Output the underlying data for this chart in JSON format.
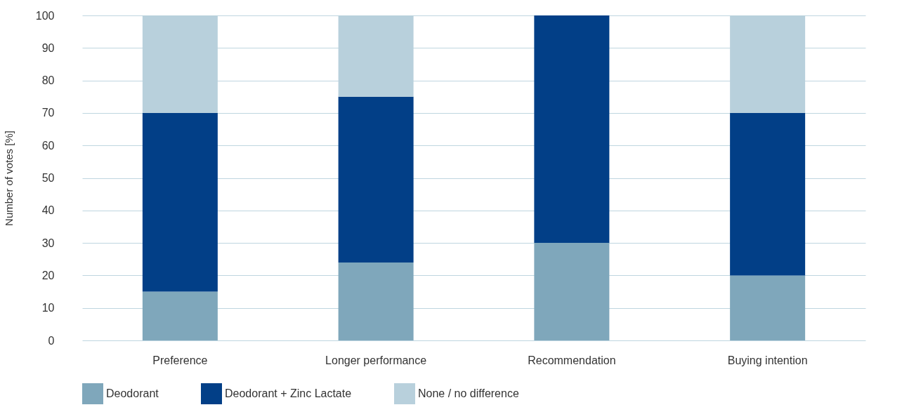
{
  "chart_data": {
    "type": "bar",
    "stacked": true,
    "ylabel": "Number of votes [%]",
    "categories": [
      "Preference",
      "Longer performance",
      "Recommendation",
      "Buying intention"
    ],
    "series": [
      {
        "name": "Deodorant",
        "color": "#7fa7bb",
        "values": [
          15,
          24,
          30,
          20
        ]
      },
      {
        "name": "Deodorant + Zinc Lactate",
        "color": "#023f87",
        "values": [
          55,
          51,
          70,
          50
        ]
      },
      {
        "name": "None / no difference",
        "color": "#b8d0dc",
        "values": [
          30,
          25,
          0,
          30
        ]
      }
    ],
    "ylim": [
      0,
      100
    ],
    "yticks": [
      0,
      10,
      20,
      30,
      40,
      50,
      60,
      70,
      80,
      90,
      100
    ],
    "grid": "y",
    "legend": "bottom"
  }
}
